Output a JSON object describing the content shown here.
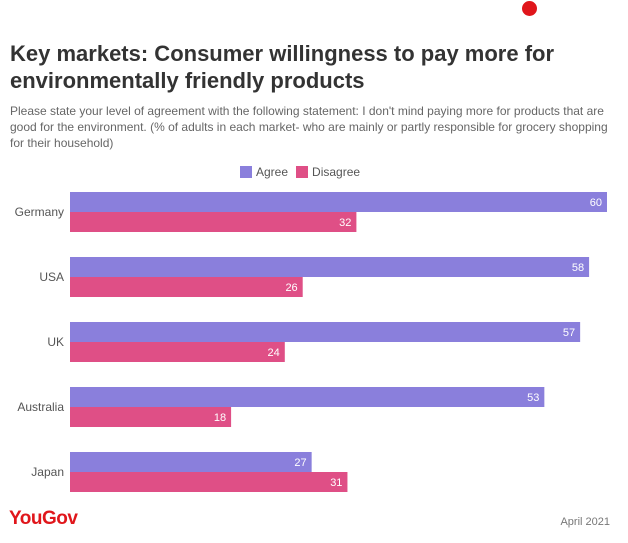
{
  "title": "Key markets: Consumer willingness to pay more for environmentally friendly products",
  "subtitle": "Please state your level of agreement with the following statement: I don't mind paying more for products that are good for the environment. (% of adults in each market- who are mainly or partly responsible for grocery shopping for their household)",
  "legend": {
    "agree": "Agree",
    "disagree": "Disagree"
  },
  "colors": {
    "agree": "#8a7fdc",
    "disagree": "#df4f86",
    "brand": "#e0161b"
  },
  "brand": "YouGov",
  "date": "April 2021",
  "chart_data": {
    "type": "bar",
    "orientation": "horizontal",
    "title": "Key markets: Consumer willingness to pay more for environmentally friendly products",
    "categories": [
      "Germany",
      "USA",
      "UK",
      "Australia",
      "Japan"
    ],
    "series": [
      {
        "name": "Agree",
        "values": [
          60,
          58,
          57,
          53,
          27
        ]
      },
      {
        "name": "Disagree",
        "values": [
          32,
          26,
          24,
          18,
          31
        ]
      }
    ],
    "xlim": [
      0,
      60
    ],
    "grid": false,
    "legend_position": "top"
  }
}
